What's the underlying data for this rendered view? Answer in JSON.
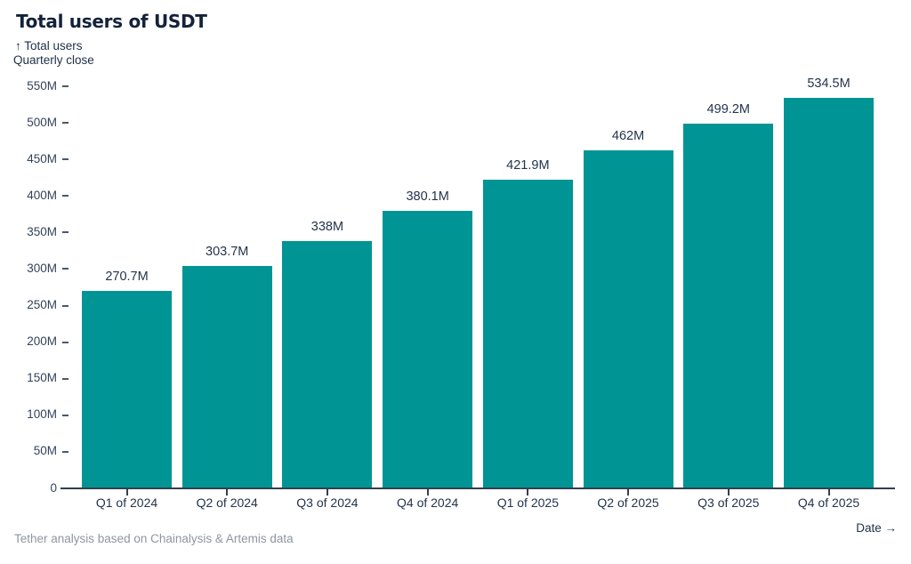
{
  "header": {
    "title": "Total users of USDT",
    "y_axis_title": "↑ Total users",
    "subtitle": "Quarterly close"
  },
  "footer": {
    "source": "Tether analysis based on Chainalysis & Artemis data",
    "x_axis_title": "Date →"
  },
  "colors": {
    "bar": "#009494",
    "title_text": "#14223a",
    "label_text": "#24344b",
    "axis_text": "#33435a",
    "axis_line": "#32404f",
    "muted_text": "#8c96a2",
    "background": "#ffffff"
  },
  "chart_data": {
    "type": "bar",
    "title": "Total users of USDT",
    "subtitle": "Quarterly close",
    "xlabel": "Date",
    "ylabel": "Total users",
    "unit": "M",
    "categories": [
      "Q1 of 2024",
      "Q2 of 2024",
      "Q3 of 2024",
      "Q4 of 2024",
      "Q1 of 2025",
      "Q2 of 2025",
      "Q3 of 2025",
      "Q4 of 2025"
    ],
    "values": [
      270.7,
      303.7,
      338,
      380.1,
      421.9,
      462,
      499.2,
      534.5
    ],
    "value_labels": [
      "270.7M",
      "303.7M",
      "338M",
      "380.1M",
      "421.9M",
      "462M",
      "499.2M",
      "534.5M"
    ],
    "ylim": [
      0,
      550
    ],
    "yticks": [
      0,
      50,
      100,
      150,
      200,
      250,
      300,
      350,
      400,
      450,
      500,
      550
    ],
    "ytick_labels": [
      "0",
      "50M",
      "100M",
      "150M",
      "200M",
      "250M",
      "300M",
      "350M",
      "400M",
      "450M",
      "500M",
      "550M"
    ],
    "grid": false,
    "legend": "none",
    "source": "Tether analysis based on Chainalysis & Artemis data"
  }
}
